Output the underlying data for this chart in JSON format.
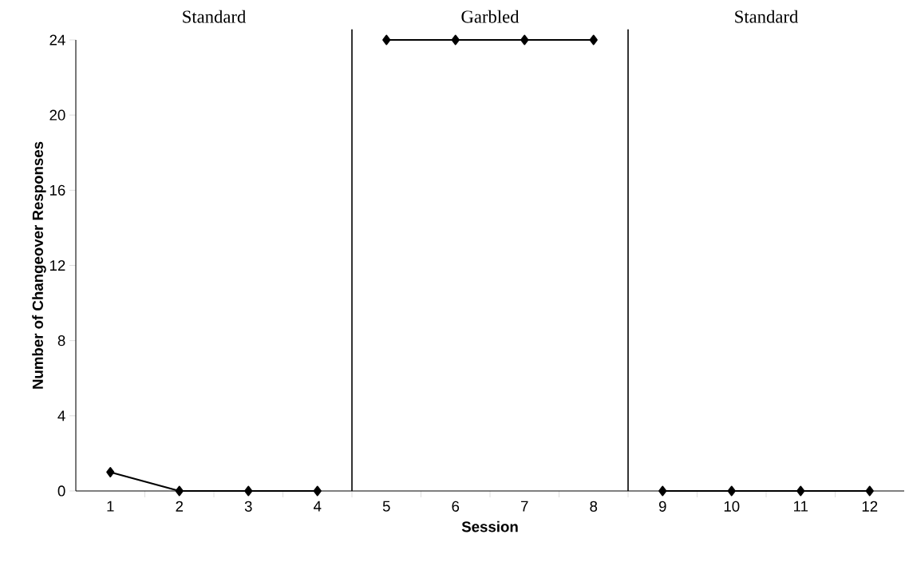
{
  "chart_data": {
    "type": "line",
    "xlabel": "Session",
    "ylabel": "Number of Changeover Responses",
    "x": [
      1,
      2,
      3,
      4,
      5,
      6,
      7,
      8,
      9,
      10,
      11,
      12
    ],
    "series": [
      {
        "color": "#000000",
        "values": [
          1,
          0,
          0,
          0,
          null,
          null,
          null,
          null,
          null,
          null,
          null,
          null
        ]
      },
      {
        "color": "#000000",
        "values": [
          null,
          null,
          null,
          null,
          24,
          24,
          24,
          24,
          null,
          null,
          null,
          null
        ]
      },
      {
        "color": "#000000",
        "values": [
          null,
          null,
          null,
          null,
          null,
          null,
          null,
          null,
          0,
          0,
          0,
          0
        ]
      }
    ],
    "xlim": [
      0.5,
      12.5
    ],
    "xticks": [
      1,
      2,
      3,
      4,
      5,
      6,
      7,
      8,
      9,
      10,
      11,
      12
    ],
    "ylim": [
      0,
      24
    ],
    "yticks": [
      0,
      4,
      8,
      12,
      16,
      20,
      24
    ],
    "ref_lines": [
      {
        "axis": "x",
        "value": 4.5,
        "color": "#000000"
      },
      {
        "axis": "x",
        "value": 8.5,
        "color": "#000000"
      }
    ],
    "annotations": [
      "Standard",
      "Garbled",
      "Standard"
    ],
    "marker": "diamond",
    "line_style": "solid",
    "grid": false
  }
}
